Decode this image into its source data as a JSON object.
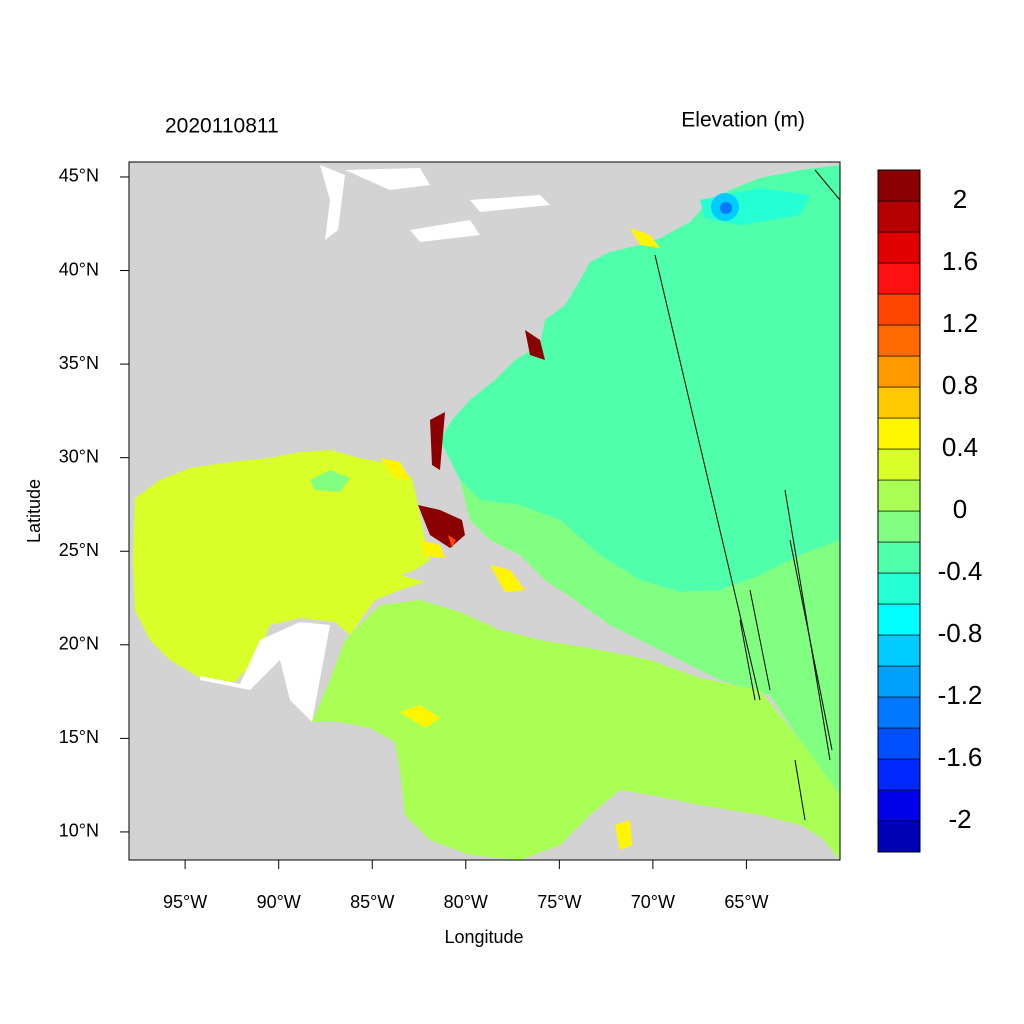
{
  "map": {
    "title_left": "2020110811",
    "title_right": "Elevation (m)",
    "x_label": "Longitude",
    "y_label": "Latitude",
    "xlim": [
      -98,
      -60
    ],
    "ylim": [
      8.5,
      45.8
    ],
    "xticks": [
      {
        "value": -95,
        "label": "95°W"
      },
      {
        "value": -90,
        "label": "90°W"
      },
      {
        "value": -85,
        "label": "85°W"
      },
      {
        "value": -80,
        "label": "80°W"
      },
      {
        "value": -75,
        "label": "75°W"
      },
      {
        "value": -70,
        "label": "70°W"
      },
      {
        "value": -65,
        "label": "65°W"
      }
    ],
    "yticks": [
      {
        "value": 10,
        "label": "10°N"
      },
      {
        "value": 15,
        "label": "15°N"
      },
      {
        "value": 20,
        "label": "20°N"
      },
      {
        "value": 25,
        "label": "25°N"
      },
      {
        "value": 30,
        "label": "30°N"
      },
      {
        "value": 35,
        "label": "35°N"
      },
      {
        "value": 40,
        "label": "40°N"
      },
      {
        "value": 45,
        "label": "45°N"
      }
    ],
    "colorbar": {
      "range": [
        -2.2,
        2.2
      ],
      "colors": [
        "#0000b4",
        "#0000ea",
        "#0028ff",
        "#0050ff",
        "#0078ff",
        "#00a0ff",
        "#00ccff",
        "#00ffff",
        "#24ffd4",
        "#50ffaa",
        "#80ff80",
        "#aaff55",
        "#d8ff28",
        "#fff500",
        "#ffc800",
        "#ff9a00",
        "#ff6a00",
        "#ff4500",
        "#ff1010",
        "#e00000",
        "#b40000",
        "#8b0000"
      ],
      "ticks": [
        -2,
        -1.6,
        -1.2,
        -0.8,
        -0.4,
        0,
        0.4,
        0.8,
        1.2,
        1.6,
        2
      ]
    }
  }
}
